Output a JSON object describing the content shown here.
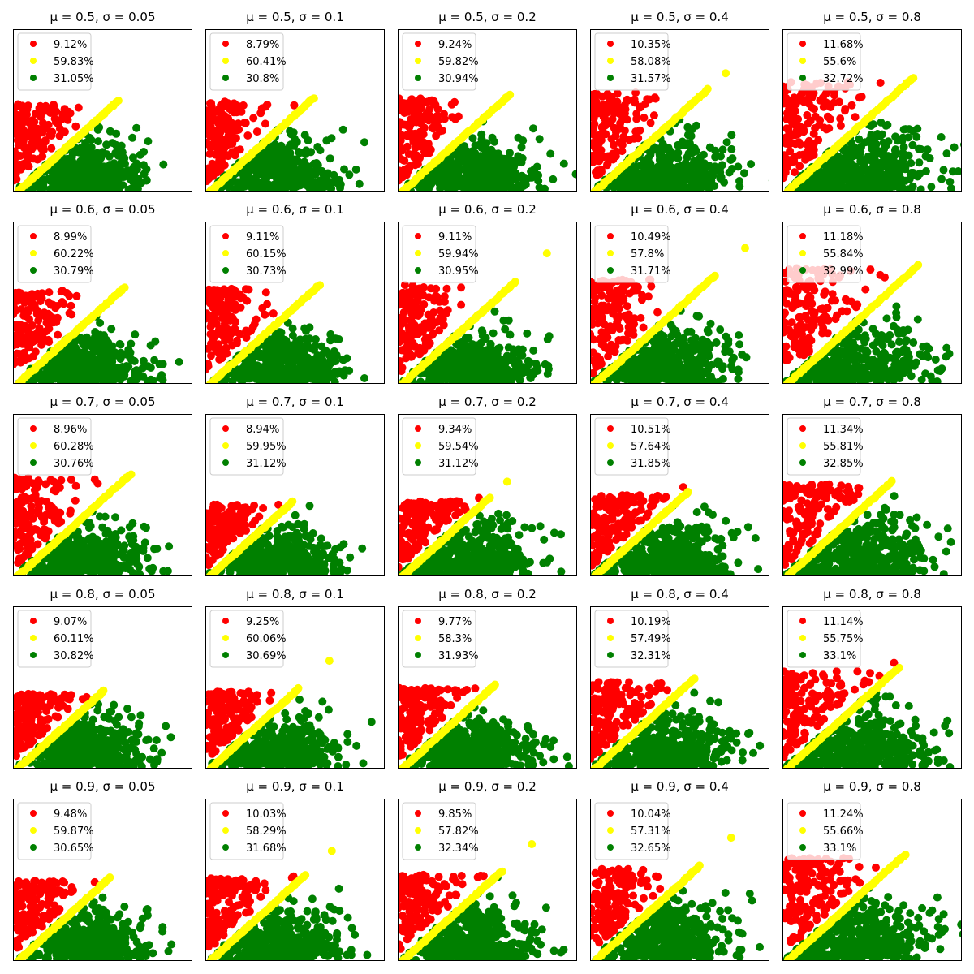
{
  "chart_data": {
    "type": "scatter",
    "colors": {
      "red": "#ff0000",
      "yellow": "#ffff00",
      "green": "#008000"
    },
    "panels": [
      {
        "title": "μ = 0.5, σ = 0.05",
        "legend": [
          {
            "label": "9.12%",
            "color": "#ff0000"
          },
          {
            "label": "59.83%",
            "color": "#ffff00"
          },
          {
            "label": "31.05%",
            "color": "#008000"
          }
        ]
      },
      {
        "title": "μ = 0.5, σ = 0.1",
        "legend": [
          {
            "label": "8.79%",
            "color": "#ff0000"
          },
          {
            "label": "60.41%",
            "color": "#ffff00"
          },
          {
            "label": "30.8%",
            "color": "#008000"
          }
        ]
      },
      {
        "title": "μ = 0.5, σ = 0.2",
        "legend": [
          {
            "label": "9.24%",
            "color": "#ff0000"
          },
          {
            "label": "59.82%",
            "color": "#ffff00"
          },
          {
            "label": "30.94%",
            "color": "#008000"
          }
        ]
      },
      {
        "title": "μ = 0.5, σ = 0.4",
        "legend": [
          {
            "label": "10.35%",
            "color": "#ff0000"
          },
          {
            "label": "58.08%",
            "color": "#ffff00"
          },
          {
            "label": "31.57%",
            "color": "#008000"
          }
        ]
      },
      {
        "title": "μ = 0.5, σ = 0.8",
        "legend": [
          {
            "label": "11.68%",
            "color": "#ff0000"
          },
          {
            "label": "55.6%",
            "color": "#ffff00"
          },
          {
            "label": "32.72%",
            "color": "#008000"
          }
        ]
      },
      {
        "title": "μ = 0.6, σ = 0.05",
        "legend": [
          {
            "label": "8.99%",
            "color": "#ff0000"
          },
          {
            "label": "60.22%",
            "color": "#ffff00"
          },
          {
            "label": "30.79%",
            "color": "#008000"
          }
        ]
      },
      {
        "title": "μ = 0.6, σ = 0.1",
        "legend": [
          {
            "label": "9.11%",
            "color": "#ff0000"
          },
          {
            "label": "60.15%",
            "color": "#ffff00"
          },
          {
            "label": "30.73%",
            "color": "#008000"
          }
        ]
      },
      {
        "title": "μ = 0.6, σ = 0.2",
        "legend": [
          {
            "label": "9.11%",
            "color": "#ff0000"
          },
          {
            "label": "59.94%",
            "color": "#ffff00"
          },
          {
            "label": "30.95%",
            "color": "#008000"
          }
        ]
      },
      {
        "title": "μ = 0.6, σ = 0.4",
        "legend": [
          {
            "label": "10.49%",
            "color": "#ff0000"
          },
          {
            "label": "57.8%",
            "color": "#ffff00"
          },
          {
            "label": "31.71%",
            "color": "#008000"
          }
        ]
      },
      {
        "title": "μ = 0.6, σ = 0.8",
        "legend": [
          {
            "label": "11.18%",
            "color": "#ff0000"
          },
          {
            "label": "55.84%",
            "color": "#ffff00"
          },
          {
            "label": "32.99%",
            "color": "#008000"
          }
        ]
      },
      {
        "title": "μ = 0.7, σ = 0.05",
        "legend": [
          {
            "label": "8.96%",
            "color": "#ff0000"
          },
          {
            "label": "60.28%",
            "color": "#ffff00"
          },
          {
            "label": "30.76%",
            "color": "#008000"
          }
        ]
      },
      {
        "title": "μ = 0.7, σ = 0.1",
        "legend": [
          {
            "label": "8.94%",
            "color": "#ff0000"
          },
          {
            "label": "59.95%",
            "color": "#ffff00"
          },
          {
            "label": "31.12%",
            "color": "#008000"
          }
        ]
      },
      {
        "title": "μ = 0.7, σ = 0.2",
        "legend": [
          {
            "label": "9.34%",
            "color": "#ff0000"
          },
          {
            "label": "59.54%",
            "color": "#ffff00"
          },
          {
            "label": "31.12%",
            "color": "#008000"
          }
        ]
      },
      {
        "title": "μ = 0.7, σ = 0.4",
        "legend": [
          {
            "label": "10.51%",
            "color": "#ff0000"
          },
          {
            "label": "57.64%",
            "color": "#ffff00"
          },
          {
            "label": "31.85%",
            "color": "#008000"
          }
        ]
      },
      {
        "title": "μ = 0.7, σ = 0.8",
        "legend": [
          {
            "label": "11.34%",
            "color": "#ff0000"
          },
          {
            "label": "55.81%",
            "color": "#ffff00"
          },
          {
            "label": "32.85%",
            "color": "#008000"
          }
        ]
      },
      {
        "title": "μ = 0.8, σ = 0.05",
        "legend": [
          {
            "label": "9.07%",
            "color": "#ff0000"
          },
          {
            "label": "60.11%",
            "color": "#ffff00"
          },
          {
            "label": "30.82%",
            "color": "#008000"
          }
        ]
      },
      {
        "title": "μ = 0.8, σ = 0.1",
        "legend": [
          {
            "label": "9.25%",
            "color": "#ff0000"
          },
          {
            "label": "60.06%",
            "color": "#ffff00"
          },
          {
            "label": "30.69%",
            "color": "#008000"
          }
        ]
      },
      {
        "title": "μ = 0.8, σ = 0.2",
        "legend": [
          {
            "label": "9.77%",
            "color": "#ff0000"
          },
          {
            "label": "58.3%",
            "color": "#ffff00"
          },
          {
            "label": "31.93%",
            "color": "#008000"
          }
        ]
      },
      {
        "title": "μ = 0.8, σ = 0.4",
        "legend": [
          {
            "label": "10.19%",
            "color": "#ff0000"
          },
          {
            "label": "57.49%",
            "color": "#ffff00"
          },
          {
            "label": "32.31%",
            "color": "#008000"
          }
        ]
      },
      {
        "title": "μ = 0.8, σ = 0.8",
        "legend": [
          {
            "label": "11.14%",
            "color": "#ff0000"
          },
          {
            "label": "55.75%",
            "color": "#ffff00"
          },
          {
            "label": "33.1%",
            "color": "#008000"
          }
        ]
      },
      {
        "title": "μ = 0.9, σ = 0.05",
        "legend": [
          {
            "label": "9.48%",
            "color": "#ff0000"
          },
          {
            "label": "59.87%",
            "color": "#ffff00"
          },
          {
            "label": "30.65%",
            "color": "#008000"
          }
        ]
      },
      {
        "title": "μ = 0.9, σ = 0.1",
        "legend": [
          {
            "label": "10.03%",
            "color": "#ff0000"
          },
          {
            "label": "58.29%",
            "color": "#ffff00"
          },
          {
            "label": "31.68%",
            "color": "#008000"
          }
        ]
      },
      {
        "title": "μ = 0.9, σ = 0.2",
        "legend": [
          {
            "label": "9.85%",
            "color": "#ff0000"
          },
          {
            "label": "57.82%",
            "color": "#ffff00"
          },
          {
            "label": "32.34%",
            "color": "#008000"
          }
        ]
      },
      {
        "title": "μ = 0.9, σ = 0.4",
        "legend": [
          {
            "label": "10.04%",
            "color": "#ff0000"
          },
          {
            "label": "57.31%",
            "color": "#ffff00"
          },
          {
            "label": "32.65%",
            "color": "#008000"
          }
        ]
      },
      {
        "title": "μ = 0.9, σ = 0.8",
        "legend": [
          {
            "label": "11.24%",
            "color": "#ff0000"
          },
          {
            "label": "55.66%",
            "color": "#ffff00"
          },
          {
            "label": "33.1%",
            "color": "#008000"
          }
        ]
      }
    ],
    "axes": {
      "ticks_visible": false,
      "grid": false
    },
    "legend_placement": "upper-left"
  }
}
